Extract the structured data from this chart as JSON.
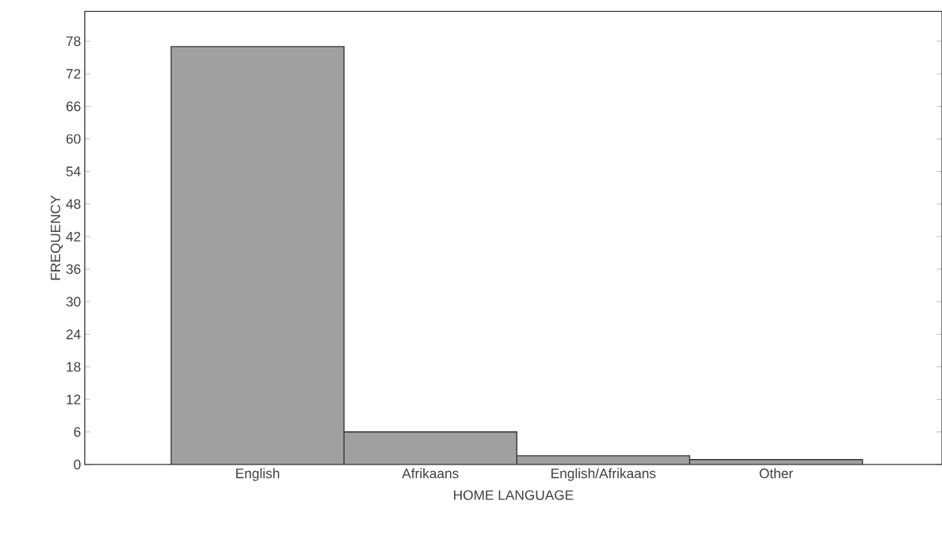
{
  "chart_data": {
    "type": "bar",
    "xlabel": "HOME LANGUAGE",
    "ylabel": "FREQUENCY",
    "categories": [
      "English",
      "Afrikaans",
      "English/Afrikaans",
      "Other"
    ],
    "values": [
      77,
      6,
      1.6,
      0.9
    ],
    "color": "#a0a0a0",
    "ylim": [
      0,
      83.5
    ],
    "yticks": [
      0,
      6,
      12,
      18,
      24,
      30,
      36,
      42,
      48,
      54,
      60,
      66,
      72,
      78
    ],
    "grid": false
  }
}
